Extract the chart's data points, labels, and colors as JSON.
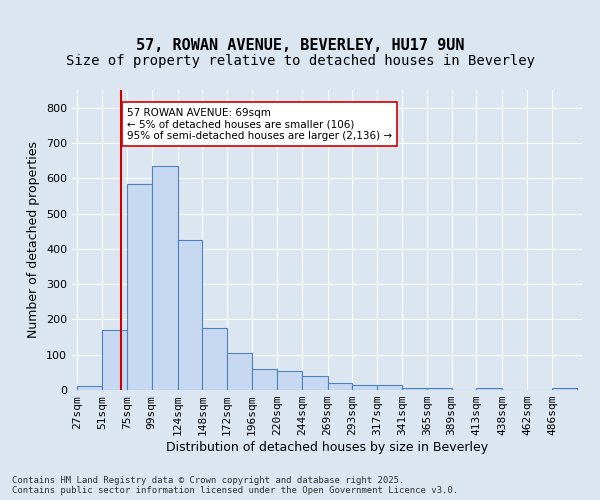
{
  "title_line1": "57, ROWAN AVENUE, BEVERLEY, HU17 9UN",
  "title_line2": "Size of property relative to detached houses in Beverley",
  "xlabel": "Distribution of detached houses by size in Beverley",
  "ylabel": "Number of detached properties",
  "footnote": "Contains HM Land Registry data © Crown copyright and database right 2025.\nContains public sector information licensed under the Open Government Licence v3.0.",
  "bar_edges": [
    27,
    51,
    75,
    99,
    124,
    148,
    172,
    196,
    220,
    244,
    269,
    293,
    317,
    341,
    365,
    389,
    413,
    438,
    462,
    486,
    510
  ],
  "bar_heights": [
    10,
    170,
    585,
    635,
    425,
    175,
    105,
    60,
    55,
    40,
    20,
    15,
    15,
    5,
    5,
    0,
    5,
    0,
    0,
    5
  ],
  "bar_color": "#c6d9f0",
  "bar_edgecolor": "#4f81bd",
  "property_line_x": 69,
  "property_line_color": "#cc0000",
  "annotation_text": "57 ROWAN AVENUE: 69sqm\n← 5% of detached houses are smaller (106)\n95% of semi-detached houses are larger (2,136) →",
  "annotation_box_color": "#ffffff",
  "annotation_box_edgecolor": "#cc0000",
  "ylim": [
    0,
    850
  ],
  "yticks": [
    0,
    100,
    200,
    300,
    400,
    500,
    600,
    700,
    800
  ],
  "background_color": "#dce6f1",
  "plot_background_color": "#dce6f1",
  "grid_color": "#ffffff",
  "tick_label_fontsize": 8,
  "axis_label_fontsize": 9,
  "title_fontsize1": 11,
  "title_fontsize2": 10
}
